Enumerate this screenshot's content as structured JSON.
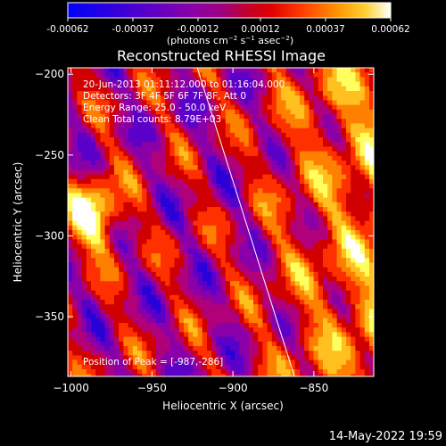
{
  "colorbar": {
    "ticks": [
      "-0.00062",
      "-0.00037",
      "-0.00012",
      "0.00012",
      "0.00037",
      "0.00062"
    ],
    "unit_label": "(photons cm",
    "unit_exp1": "−2",
    "unit_mid": " s",
    "unit_exp2": "−1",
    "unit_mid2": " asec",
    "unit_exp3": "−2",
    "unit_end": ")"
  },
  "chart_data": {
    "type": "heatmap",
    "title": "Reconstructed RHESSI Image",
    "xlabel": "Heliocentric X (arcsec)",
    "ylabel": "Heliocentric Y (arcsec)",
    "xlim": [
      -1002,
      -813
    ],
    "ylim": [
      -387,
      -196
    ],
    "xticks": [
      {
        "value": -1000,
        "label": "−1000"
      },
      {
        "value": -950,
        "label": "−950"
      },
      {
        "value": -900,
        "label": "−900"
      },
      {
        "value": -850,
        "label": "−850"
      }
    ],
    "yticks": [
      {
        "value": -200,
        "label": "−200"
      },
      {
        "value": -250,
        "label": "−250"
      },
      {
        "value": -300,
        "label": "−300"
      },
      {
        "value": -350,
        "label": "−350"
      }
    ],
    "color_range": [
      -0.00062,
      0.00062
    ],
    "colormap": [
      "#0000ff",
      "#2a00d8",
      "#5a00c8",
      "#8a00a8",
      "#b0007a",
      "#d00000",
      "#ff3000",
      "#ff8000",
      "#ffc020",
      "#ffff60",
      "#ffffff"
    ],
    "peak_position": [
      -987,
      -286
    ],
    "limb_line": {
      "from": [
        -922,
        -196
      ],
      "to": [
        -862,
        -387
      ]
    },
    "annotations": [
      "20-Jun-2013 01:11:12.000 to 01:16:04.000",
      "Detectors: 3F 4F 5F 6F 7F 8F, Att 0",
      "Energy Range: 25.0 - 50.0 keV",
      "Clean     Total counts: 8.79E+03"
    ],
    "peak_label": "Position of Peak = [-987,-286]"
  },
  "footer": {
    "timestamp": "14-May-2022 19:59"
  }
}
